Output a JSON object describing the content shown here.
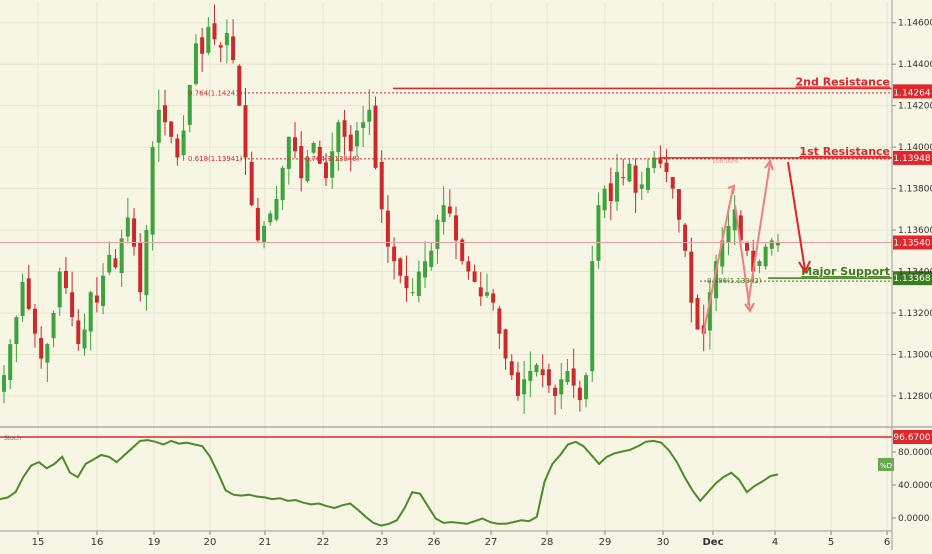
{
  "colors": {
    "background": "#f7f5e4",
    "up_candle": "#3ea33e",
    "down_candle": "#cc2a2a",
    "resistance": "#e3262b",
    "support": "#3a7d1c",
    "stoch_line": "#4e8a2b",
    "arrow_pink": "#f08080",
    "arrow_red": "#e02424"
  },
  "chart_data": [
    {
      "type": "candlestick",
      "instrument_hint": "EURUSD",
      "x_tick_labels": [
        "15",
        "16",
        "19",
        "20",
        "21",
        "22",
        "23",
        "26",
        "27",
        "28",
        "29",
        "30",
        "Dec",
        "4",
        "5",
        "6"
      ],
      "y_tick_labels": [
        "1.14600",
        "1.14400",
        "1.14200",
        "1.14000",
        "1.13800",
        "1.13600",
        "1.13400",
        "1.13200",
        "1.13000",
        "1.12800"
      ],
      "ylim": [
        1.1265,
        1.147
      ],
      "levels": [
        {
          "label": "2nd Resistance",
          "value": "1.14264",
          "style": "resistance"
        },
        {
          "label": "1st Resistance",
          "value": "1.13948",
          "style": "resistance"
        },
        {
          "label": "",
          "value": "1.13540",
          "style": "current"
        },
        {
          "label": "Major Support",
          "value": "1.13368",
          "style": "support"
        }
      ],
      "fib_labels": [
        {
          "text": "0.764(1.14241)"
        },
        {
          "text": "0.618(1.13941)"
        },
        {
          "text": "0.764(1.13948)"
        },
        {
          "text": "100.00%"
        },
        {
          "text": "0.886(1.13362)"
        }
      ],
      "closes_path": [
        1.129,
        1.1305,
        1.1318,
        1.1335,
        1.1322,
        1.131,
        1.1298,
        1.1305,
        1.132,
        1.134,
        1.1332,
        1.1318,
        1.1305,
        1.1312,
        1.133,
        1.1325,
        1.1338,
        1.1348,
        1.1342,
        1.1356,
        1.1366,
        1.1352,
        1.133,
        1.136,
        1.14,
        1.1418,
        1.1412,
        1.1405,
        1.1395,
        1.1408,
        1.143,
        1.145,
        1.1445,
        1.1458,
        1.1452,
        1.1448,
        1.1455,
        1.1442,
        1.142,
        1.1395,
        1.1372,
        1.1355,
        1.1362,
        1.1368,
        1.1375,
        1.139,
        1.1405,
        1.1398,
        1.1385,
        1.1395,
        1.1402,
        1.1392,
        1.1385,
        1.1398,
        1.1412,
        1.1405,
        1.1398,
        1.1408,
        1.1412,
        1.1418,
        1.139,
        1.137,
        1.1352,
        1.1345,
        1.1338,
        1.1332,
        1.133,
        1.134,
        1.1345,
        1.135,
        1.1365,
        1.1372,
        1.1368,
        1.1355,
        1.1345,
        1.134,
        1.1335,
        1.1328,
        1.133,
        1.1325,
        1.131,
        1.1298,
        1.129,
        1.128,
        1.1288,
        1.1292,
        1.1295,
        1.129,
        1.1285,
        1.128,
        1.1288,
        1.1292,
        1.1285,
        1.1278,
        1.129,
        1.1345,
        1.1372,
        1.138,
        1.1374,
        1.1388,
        1.1385,
        1.1392,
        1.1378,
        1.1382,
        1.139,
        1.1395,
        1.1392,
        1.1388,
        1.138,
        1.1365,
        1.135,
        1.1325,
        1.1312,
        1.131,
        1.133,
        1.1345,
        1.1355,
        1.1362,
        1.137,
        1.1355,
        1.135,
        1.134,
        1.1345,
        1.1352,
        1.1355,
        1.1354
      ],
      "stochastic": {
        "label": "Stoch",
        "upper_level": "96.6700",
        "badge": "%D",
        "y_tick_labels": [
          "80.0000",
          "40.0000",
          "0.0000"
        ],
        "ylim": [
          -5,
          105
        ],
        "values": [
          30,
          32,
          38,
          55,
          68,
          72,
          65,
          70,
          78,
          60,
          55,
          70,
          75,
          80,
          78,
          72,
          80,
          88,
          96,
          97,
          95,
          92,
          96,
          93,
          94,
          92,
          90,
          78,
          60,
          40,
          35,
          34,
          35,
          33,
          32,
          30,
          31,
          28,
          29,
          26,
          24,
          25,
          22,
          20,
          23,
          25,
          18,
          10,
          3,
          0,
          2,
          6,
          20,
          38,
          36,
          22,
          8,
          3,
          4,
          3,
          2,
          5,
          8,
          4,
          2,
          2,
          4,
          6,
          5,
          10,
          50,
          70,
          80,
          92,
          95,
          90,
          80,
          70,
          78,
          82,
          84,
          86,
          90,
          95,
          96,
          94,
          85,
          72,
          55,
          40,
          28,
          38,
          48,
          55,
          60,
          52,
          38,
          45,
          50,
          56,
          58
        ]
      }
    }
  ]
}
